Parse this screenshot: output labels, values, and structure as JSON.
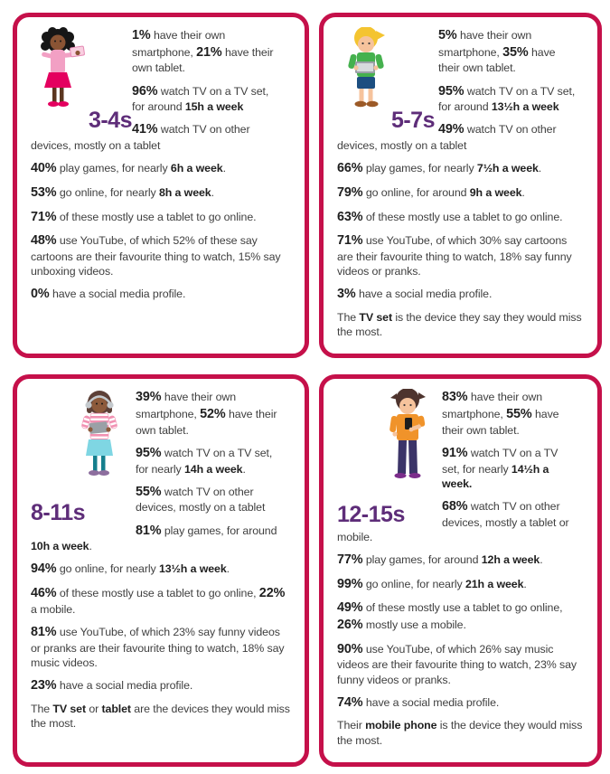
{
  "theme": {
    "card_border_color": "#c5104a",
    "age_label_color": "#5e2d79",
    "body_text_color": "#3f3f3f",
    "stat_bold_color": "#1f1f1f",
    "background_color": "#ffffff"
  },
  "panels": [
    {
      "age_label": "3-4s",
      "character": {
        "icon": "toddler-girl-with-tablet-icon",
        "hair": "#161616",
        "skin": "#8a5434",
        "top": "#f2a0c4",
        "skirt": "#e4005f",
        "device": "#f9cfe0",
        "shoes": "#e4005f"
      },
      "items": [
        {
          "column": true,
          "segments": [
            {
              "t": "1%",
              "style": "pct"
            },
            {
              "t": " have their own smartphone, "
            },
            {
              "t": "21%",
              "style": "pct"
            },
            {
              "t": " have their own tablet."
            }
          ]
        },
        {
          "column": true,
          "segments": [
            {
              "t": "96%",
              "style": "pct"
            },
            {
              "t": " watch TV on a TV set, for around "
            },
            {
              "t": "15h a week",
              "style": "b"
            }
          ]
        },
        {
          "column": true,
          "segments": [
            {
              "t": "41%",
              "style": "pct"
            },
            {
              "t": " watch TV on other devices, mostly on a tablet"
            }
          ]
        },
        {
          "column": false,
          "segments": [
            {
              "t": "40%",
              "style": "pct"
            },
            {
              "t": " play games, for nearly "
            },
            {
              "t": "6h a week",
              "style": "b"
            },
            {
              "t": "."
            }
          ]
        },
        {
          "column": false,
          "segments": [
            {
              "t": "53%",
              "style": "pct"
            },
            {
              "t": " go online, for nearly "
            },
            {
              "t": "8h a week",
              "style": "b"
            },
            {
              "t": "."
            }
          ]
        },
        {
          "column": false,
          "segments": [
            {
              "t": "71%",
              "style": "pct"
            },
            {
              "t": " of these mostly use a tablet to go online."
            }
          ]
        },
        {
          "column": false,
          "segments": [
            {
              "t": "48%",
              "style": "pct"
            },
            {
              "t": " use YouTube, of which 52% of these say cartoons are their favourite thing to watch, 15% say unboxing videos."
            }
          ]
        },
        {
          "column": false,
          "segments": [
            {
              "t": "0%",
              "style": "pct"
            },
            {
              "t": " have a social media profile."
            }
          ]
        }
      ]
    },
    {
      "age_label": "5-7s",
      "character": {
        "icon": "boy-with-tablet-icon",
        "hair": "#f4c430",
        "skin": "#f6c39c",
        "shirt": "#45b14e",
        "shorts": "#1c4e80",
        "device": "#9aa0a6",
        "shoes": "#9c5a27"
      },
      "items": [
        {
          "column": true,
          "segments": [
            {
              "t": "5%",
              "style": "pct"
            },
            {
              "t": " have their own smartphone, "
            },
            {
              "t": "35%",
              "style": "pct"
            },
            {
              "t": " have their own tablet."
            }
          ]
        },
        {
          "column": true,
          "segments": [
            {
              "t": "95%",
              "style": "pct"
            },
            {
              "t": " watch TV on a TV set, for around "
            },
            {
              "t": "13½h a week",
              "style": "b"
            }
          ]
        },
        {
          "column": true,
          "segments": [
            {
              "t": "49%",
              "style": "pct"
            },
            {
              "t": " watch TV on other devices, mostly on a tablet"
            }
          ]
        },
        {
          "column": false,
          "segments": [
            {
              "t": "66%",
              "style": "pct"
            },
            {
              "t": " play games, for nearly "
            },
            {
              "t": "7½h a week",
              "style": "b"
            },
            {
              "t": "."
            }
          ]
        },
        {
          "column": false,
          "segments": [
            {
              "t": "79%",
              "style": "pct"
            },
            {
              "t": " go online, for around "
            },
            {
              "t": "9h a week",
              "style": "b"
            },
            {
              "t": "."
            }
          ]
        },
        {
          "column": false,
          "segments": [
            {
              "t": "63%",
              "style": "pct"
            },
            {
              "t": " of these mostly use a tablet to go online."
            }
          ]
        },
        {
          "column": false,
          "segments": [
            {
              "t": "71%",
              "style": "pct"
            },
            {
              "t": " use YouTube, of which 30% say cartoons are their favourite thing to watch, 18% say funny videos or pranks."
            }
          ]
        },
        {
          "column": false,
          "segments": [
            {
              "t": "3%",
              "style": "pct"
            },
            {
              "t": " have a social media profile."
            }
          ]
        },
        {
          "column": false,
          "segments": [
            {
              "t": "The "
            },
            {
              "t": "TV set",
              "style": "b"
            },
            {
              "t": " is the device they say they would miss the most."
            }
          ]
        }
      ]
    },
    {
      "age_label": "8-11s",
      "character": {
        "icon": "girl-with-headphones-tablet-icon",
        "hair": "#5d4037",
        "skin": "#8d5a3b",
        "top_stripe": "#f191b2",
        "skirt": "#7fd6e3",
        "legs": "#157f8d",
        "device": "#9aa0a6",
        "shoes": "#8d6e9e",
        "headphones": "#c4c9cd"
      },
      "items": [
        {
          "column": true,
          "segments": [
            {
              "t": "39%",
              "style": "pct"
            },
            {
              "t": " have their own smartphone, "
            },
            {
              "t": "52%",
              "style": "pct"
            },
            {
              "t": " have their own tablet."
            }
          ]
        },
        {
          "column": true,
          "segments": [
            {
              "t": "95%",
              "style": "pct"
            },
            {
              "t": " watch TV on a TV set, for nearly "
            },
            {
              "t": "14h a week",
              "style": "b"
            },
            {
              "t": "."
            }
          ]
        },
        {
          "column": true,
          "segments": [
            {
              "t": "55%",
              "style": "pct"
            },
            {
              "t": " watch TV on other devices, mostly on a tablet"
            }
          ]
        },
        {
          "column": false,
          "segments": [
            {
              "t": "81%",
              "style": "pct"
            },
            {
              "t": " play games, for around "
            },
            {
              "t": "10h a week",
              "style": "b"
            },
            {
              "t": "."
            }
          ]
        },
        {
          "column": false,
          "segments": [
            {
              "t": "94%",
              "style": "pct"
            },
            {
              "t": " go online, for nearly "
            },
            {
              "t": "13½h a week",
              "style": "b"
            },
            {
              "t": "."
            }
          ]
        },
        {
          "column": false,
          "segments": [
            {
              "t": "46%",
              "style": "pct"
            },
            {
              "t": " of these mostly use a tablet to go online, "
            },
            {
              "t": "22%",
              "style": "pct"
            },
            {
              "t": " a mobile."
            }
          ]
        },
        {
          "column": false,
          "segments": [
            {
              "t": "81%",
              "style": "pct"
            },
            {
              "t": " use YouTube, of which 23% say funny videos or pranks are their favourite thing to watch, 18% say music videos."
            }
          ]
        },
        {
          "column": false,
          "segments": [
            {
              "t": "23%",
              "style": "pct"
            },
            {
              "t": " have a social media profile."
            }
          ]
        },
        {
          "column": false,
          "segments": [
            {
              "t": "The "
            },
            {
              "t": "TV set",
              "style": "b"
            },
            {
              "t": " or "
            },
            {
              "t": "tablet",
              "style": "b"
            },
            {
              "t": " are the devices they would miss the most."
            }
          ]
        }
      ]
    },
    {
      "age_label": "12-15s",
      "character": {
        "icon": "teen-boy-with-phone-icon",
        "hair": "#4e342e",
        "skin": "#f6c39c",
        "shirt": "#f0932a",
        "pants": "#3b3468",
        "device": "#1d1d1d",
        "shoes": "#7b2d8b"
      },
      "items": [
        {
          "column": true,
          "segments": [
            {
              "t": "83%",
              "style": "pct"
            },
            {
              "t": " have their own smartphone, "
            },
            {
              "t": "55%",
              "style": "pct"
            },
            {
              "t": " have their own tablet."
            }
          ]
        },
        {
          "column": true,
          "segments": [
            {
              "t": "91%",
              "style": "pct"
            },
            {
              "t": " watch TV on a TV set, for nearly "
            },
            {
              "t": "14½h a week.",
              "style": "b"
            }
          ]
        },
        {
          "column": true,
          "segments": [
            {
              "t": "68%",
              "style": "pct"
            },
            {
              "t": " watch TV on other devices, mostly a tablet or mobile."
            }
          ]
        },
        {
          "column": false,
          "segments": [
            {
              "t": "77%",
              "style": "pct"
            },
            {
              "t": " play games, for around "
            },
            {
              "t": "12h a week",
              "style": "b"
            },
            {
              "t": "."
            }
          ]
        },
        {
          "column": false,
          "segments": [
            {
              "t": "99%",
              "style": "pct"
            },
            {
              "t": " go online, for nearly "
            },
            {
              "t": "21h a week",
              "style": "b"
            },
            {
              "t": "."
            }
          ]
        },
        {
          "column": false,
          "segments": [
            {
              "t": "49%",
              "style": "pct"
            },
            {
              "t": " of these mostly use a tablet to go online, "
            },
            {
              "t": "26%",
              "style": "pct"
            },
            {
              "t": " mostly use a mobile."
            }
          ]
        },
        {
          "column": false,
          "segments": [
            {
              "t": "90%",
              "style": "pct"
            },
            {
              "t": " use YouTube, of which 26% say music videos are their favourite thing to watch, 23% say funny videos or pranks."
            }
          ]
        },
        {
          "column": false,
          "segments": [
            {
              "t": "74%",
              "style": "pct"
            },
            {
              "t": " have a social media profile."
            }
          ]
        },
        {
          "column": false,
          "segments": [
            {
              "t": "Their "
            },
            {
              "t": "mobile phone",
              "style": "b"
            },
            {
              "t": " is the device they would miss the most."
            }
          ]
        }
      ]
    }
  ]
}
